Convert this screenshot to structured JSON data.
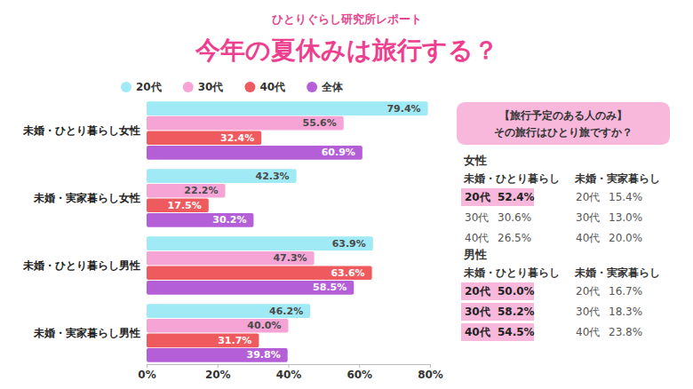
{
  "chart_data": {
    "type": "bar",
    "orientation": "horizontal",
    "subtitle": "ひとりぐらし研究所レポート",
    "title": "今年の夏休みは旅行する？",
    "categories": [
      "未婚・ひとり暮らし女性",
      "未婚・実家暮らし女性",
      "未婚・ひとり暮らし男性",
      "未婚・実家暮らし男性"
    ],
    "series": [
      {
        "name": "20代",
        "color": "#a0eaf6",
        "values": [
          79.4,
          42.3,
          63.9,
          46.2
        ],
        "value_labels": [
          "79.4%",
          "42.3%",
          "63.9%",
          "46.2%"
        ]
      },
      {
        "name": "30代",
        "color": "#f6a3d5",
        "values": [
          55.6,
          22.2,
          47.3,
          40.0
        ],
        "value_labels": [
          "55.6%",
          "22.2%",
          "47.3%",
          "40.0%"
        ]
      },
      {
        "name": "40代",
        "color": "#ef5a5f",
        "values": [
          32.4,
          17.5,
          63.6,
          31.7
        ],
        "value_labels": [
          "32.4%",
          "17.5%",
          "63.6%",
          "31.7%"
        ]
      },
      {
        "name": "全体",
        "color": "#b45fd8",
        "values": [
          60.9,
          30.2,
          58.5,
          39.8
        ],
        "value_labels": [
          "60.9%",
          "30.2%",
          "58.5%",
          "39.8%"
        ]
      }
    ],
    "xlim": [
      0,
      80
    ],
    "xticks": [
      {
        "value": 0,
        "label": "0%"
      },
      {
        "value": 20,
        "label": "20%"
      },
      {
        "value": 40,
        "label": "40%"
      },
      {
        "value": 60,
        "label": "60%"
      },
      {
        "value": 80,
        "label": "80%"
      }
    ],
    "legend": "top",
    "data_labels": true,
    "grid": false
  },
  "side_panel": {
    "heading": [
      "【旅行予定のある人のみ】",
      "その旅行はひとり旅ですか？"
    ],
    "groups": [
      {
        "title": "女性",
        "columns": [
          {
            "header": "未婚・ひとり暮らし",
            "rows": [
              {
                "age": "20代",
                "value": "52.4%",
                "highlight": true
              },
              {
                "age": "30代",
                "value": "30.6%",
                "highlight": false
              },
              {
                "age": "40代",
                "value": "26.5%",
                "highlight": false
              }
            ]
          },
          {
            "header": "未婚・実家暮らし",
            "rows": [
              {
                "age": "20代",
                "value": "15.4%",
                "highlight": false
              },
              {
                "age": "30代",
                "value": "13.0%",
                "highlight": false
              },
              {
                "age": "40代",
                "value": "20.0%",
                "highlight": false
              }
            ]
          }
        ]
      },
      {
        "title": "男性",
        "columns": [
          {
            "header": "未婚・ひとり暮らし",
            "rows": [
              {
                "age": "20代",
                "value": "50.0%",
                "highlight": true
              },
              {
                "age": "30代",
                "value": "58.2%",
                "highlight": true
              },
              {
                "age": "40代",
                "value": "54.5%",
                "highlight": true
              }
            ]
          },
          {
            "header": "未婚・実家暮らし",
            "rows": [
              {
                "age": "20代",
                "value": "16.7%",
                "highlight": false
              },
              {
                "age": "30代",
                "value": "18.3%",
                "highlight": false
              },
              {
                "age": "40代",
                "value": "23.8%",
                "highlight": false
              }
            ]
          }
        ]
      }
    ]
  }
}
